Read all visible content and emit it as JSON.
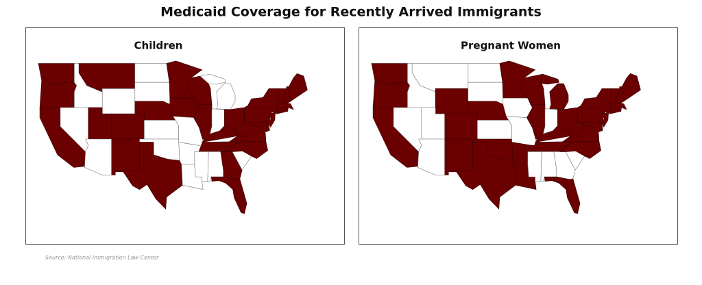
{
  "title": "Medicaid Coverage for Recently Arrived Immigrants",
  "panels": [
    {
      "title": "Children"
    },
    {
      "title": "Pregnant Women"
    }
  ],
  "source": "Source: National Immigration Law Center"
}
